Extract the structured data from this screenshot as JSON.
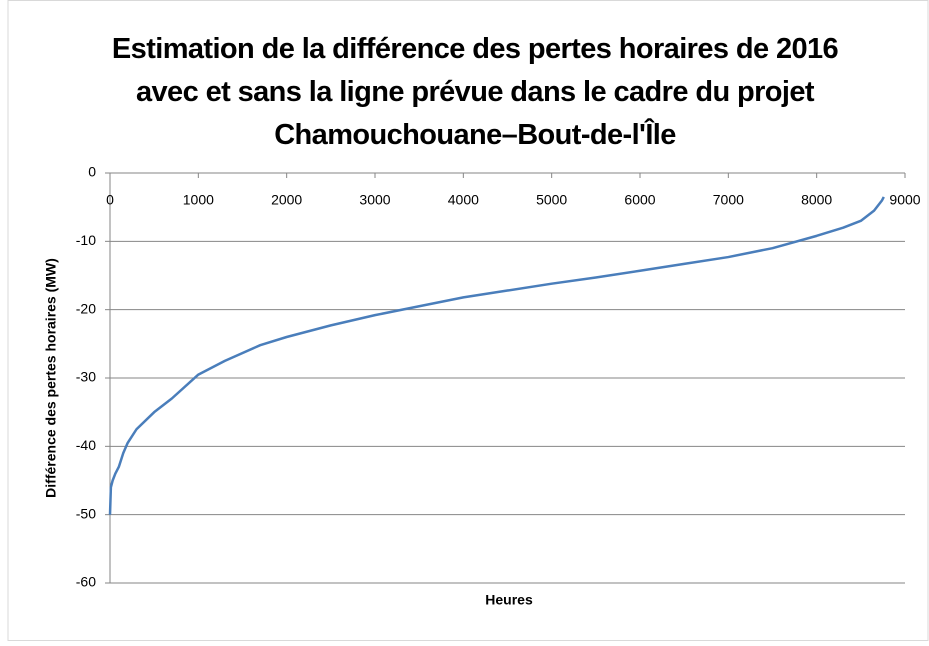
{
  "chart_data": {
    "type": "line",
    "title": "Estimation de la différence des pertes horaires de 2016 avec et sans la ligne prévue dans le cadre du projet Chamouchouane–Bout-de-l'Île",
    "x_label": "Heures",
    "y_label": "Différence des pertes horaires (MW)",
    "x": [
      0,
      5,
      10,
      30,
      60,
      100,
      150,
      200,
      300,
      500,
      700,
      1000,
      1300,
      1700,
      2000,
      2500,
      3000,
      3500,
      4000,
      4500,
      5000,
      5500,
      6000,
      6500,
      7000,
      7500,
      8000,
      8300,
      8500,
      8650,
      8740,
      8760
    ],
    "values": [
      -50,
      -48,
      -46,
      -45,
      -44,
      -43,
      -41,
      -39.5,
      -37.5,
      -35,
      -33,
      -29.5,
      -27.5,
      -25.2,
      -24,
      -22.3,
      -20.8,
      -19.5,
      -18.2,
      -17.2,
      -16.2,
      -15.3,
      -14.3,
      -13.3,
      -12.3,
      -11,
      -9.2,
      -8,
      -7,
      -5.5,
      -4,
      -3.5
    ],
    "color": "#4a7ebb",
    "xlim": [
      0,
      9000
    ],
    "xticks": [
      0,
      1000,
      2000,
      3000,
      4000,
      5000,
      6000,
      7000,
      8000,
      9000
    ],
    "ylim": [
      -60,
      0
    ],
    "yticks": [
      0,
      -10,
      -20,
      -30,
      -40,
      -50,
      -60
    ],
    "grid": true
  }
}
